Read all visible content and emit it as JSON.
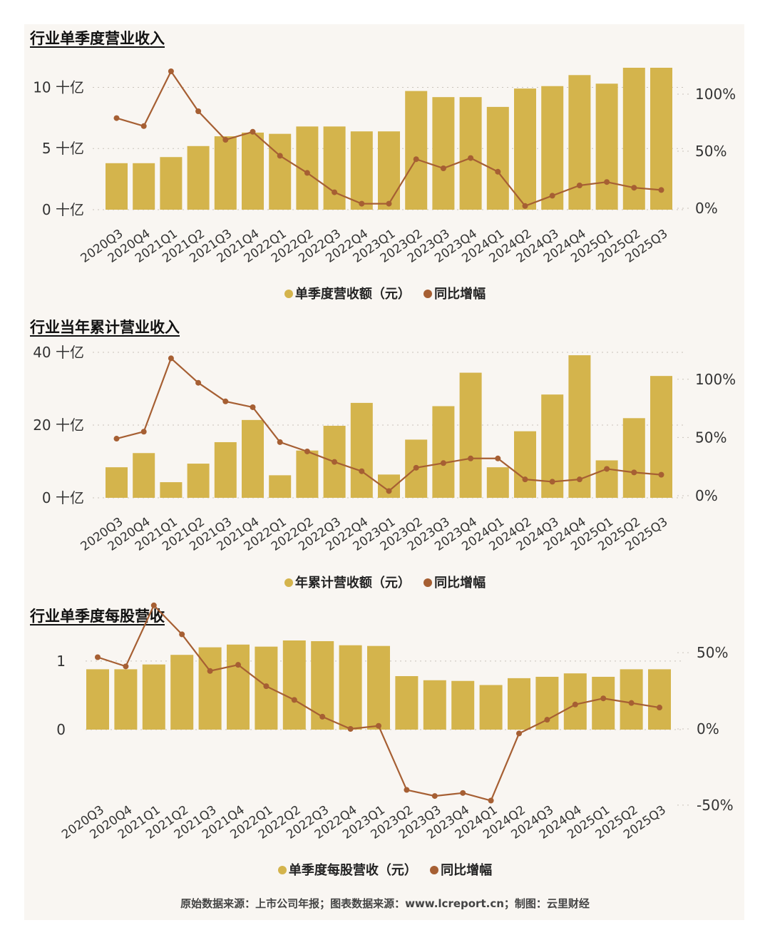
{
  "colors": {
    "bar": "#d4b44c",
    "line": "#a65f33",
    "grid": "#c9c3bb"
  },
  "chart_data": [
    {
      "type": "bar",
      "title": "行业单季度营业收入",
      "categories": [
        "2020Q3",
        "2020Q4",
        "2021Q1",
        "2021Q2",
        "2021Q3",
        "2021Q4",
        "2022Q1",
        "2022Q2",
        "2022Q3",
        "2022Q4",
        "2023Q1",
        "2023Q2",
        "2023Q3",
        "2023Q4",
        "2024Q1",
        "2024Q2",
        "2024Q3",
        "2024Q4",
        "2025Q1",
        "2025Q2",
        "2025Q3"
      ],
      "series": [
        {
          "name": "单季度营收额（元）",
          "type": "bar",
          "axis": "left",
          "values": [
            3.8,
            3.8,
            4.3,
            5.2,
            6.0,
            6.3,
            6.2,
            6.8,
            6.8,
            6.4,
            6.4,
            9.7,
            9.2,
            9.2,
            8.4,
            9.9,
            10.1,
            11.0,
            10.3,
            11.6,
            11.6
          ]
        },
        {
          "name": "同比增幅",
          "type": "line",
          "axis": "right",
          "values": [
            79,
            72,
            120,
            85,
            60,
            67,
            46,
            31,
            14,
            4,
            4,
            43,
            35,
            44,
            32,
            2,
            11,
            20,
            23,
            18,
            16
          ]
        }
      ],
      "yleft": {
        "ticks": [
          "0 十亿",
          "5 十亿",
          "10 十亿"
        ],
        "tick_values": [
          0,
          5,
          10
        ],
        "range": [
          0,
          11.6
        ]
      },
      "yright": {
        "ticks": [
          "0%",
          "50%",
          "100%"
        ],
        "tick_values": [
          0,
          50,
          100
        ],
        "range": [
          0,
          120
        ]
      },
      "grid": true,
      "legend": "bottom-center"
    },
    {
      "type": "bar",
      "title": "行业当年累计营业收入",
      "categories": [
        "2020Q3",
        "2020Q4",
        "2021Q1",
        "2021Q2",
        "2021Q3",
        "2021Q4",
        "2022Q1",
        "2022Q2",
        "2022Q3",
        "2022Q4",
        "2023Q1",
        "2023Q2",
        "2023Q3",
        "2023Q4",
        "2024Q1",
        "2024Q2",
        "2024Q3",
        "2024Q4",
        "2025Q1",
        "2025Q2",
        "2025Q3"
      ],
      "series": [
        {
          "name": "年累计营收额（元）",
          "type": "bar",
          "axis": "left",
          "values": [
            8.4,
            12.3,
            4.3,
            9.4,
            15.3,
            21.4,
            6.2,
            13.0,
            19.8,
            26.1,
            6.4,
            16.0,
            25.2,
            34.4,
            8.4,
            18.3,
            28.4,
            39.2,
            10.3,
            21.9,
            33.5
          ]
        },
        {
          "name": "同比增幅",
          "type": "line",
          "axis": "right",
          "values": [
            49,
            55,
            118,
            97,
            81,
            76,
            46,
            38,
            29,
            21,
            4,
            24,
            28,
            32,
            32,
            14,
            12,
            14,
            23,
            20,
            18
          ]
        }
      ],
      "yleft": {
        "ticks": [
          "0 十亿",
          "20 十亿",
          "40 十亿"
        ],
        "tick_values": [
          0,
          20,
          40
        ],
        "range": [
          0,
          40
        ]
      },
      "yright": {
        "ticks": [
          "0%",
          "50%",
          "100%"
        ],
        "tick_values": [
          0,
          50,
          100
        ],
        "range": [
          0,
          125
        ]
      },
      "grid": true,
      "legend": "bottom-center"
    },
    {
      "type": "bar",
      "title": "行业单季度每股营收",
      "categories": [
        "2020Q3",
        "2020Q4",
        "2021Q1",
        "2021Q2",
        "2021Q3",
        "2021Q4",
        "2022Q1",
        "2022Q2",
        "2022Q3",
        "2022Q4",
        "2023Q1",
        "2023Q2",
        "2023Q3",
        "2023Q4",
        "2024Q1",
        "2024Q2",
        "2024Q3",
        "2024Q4",
        "2025Q1",
        "2025Q2",
        "2025Q3"
      ],
      "series": [
        {
          "name": "单季度每股营收（元）",
          "type": "bar",
          "axis": "left",
          "values": [
            0.88,
            0.88,
            0.95,
            1.09,
            1.2,
            1.24,
            1.21,
            1.3,
            1.29,
            1.23,
            1.22,
            0.78,
            0.72,
            0.71,
            0.65,
            0.75,
            0.77,
            0.82,
            0.77,
            0.88,
            0.88
          ]
        },
        {
          "name": "同比增幅",
          "type": "line",
          "axis": "right",
          "values": [
            47,
            41,
            81,
            62,
            38,
            42,
            28,
            19,
            8,
            0,
            2,
            -40,
            -44,
            -42,
            -47,
            -3,
            6,
            16,
            20,
            17,
            14
          ]
        }
      ],
      "yleft": {
        "ticks": [
          "0",
          "1"
        ],
        "tick_values": [
          0,
          1
        ],
        "range": [
          0,
          1.3
        ]
      },
      "yright": {
        "ticks": [
          "-50%",
          "0%",
          "50%"
        ],
        "tick_values": [
          -50,
          0,
          50
        ],
        "range": [
          -50,
          65
        ]
      },
      "grid": true,
      "legend": "bottom-center"
    }
  ],
  "footer": "原始数据来源：上市公司年报；图表数据来源：www.lcreport.cn；制图：云里财经"
}
